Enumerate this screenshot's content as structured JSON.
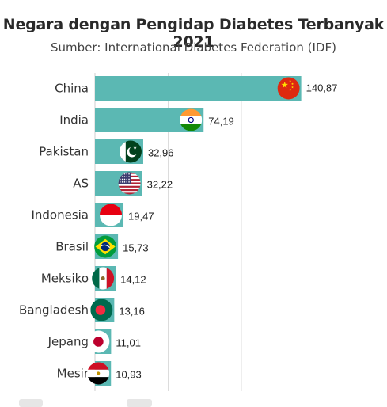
{
  "chart_data": {
    "type": "bar",
    "orientation": "horizontal",
    "title": "Negara dengan Pengidap Diabetes Terbanyak 2021",
    "subtitle": "Sumber: International Diabetes Federation (IDF)",
    "categories": [
      "China",
      "India",
      "Pakistan",
      "AS",
      "Indonesia",
      "Brasil",
      "Meksiko",
      "Bangladesh",
      "Jepang",
      "Mesir"
    ],
    "values": [
      140.87,
      74.19,
      32.96,
      32.22,
      19.47,
      15.73,
      14.12,
      13.16,
      11.01,
      10.93
    ],
    "value_labels": [
      "140,87",
      "74,19",
      "32,96",
      "32,22",
      "19,47",
      "15,73",
      "14,12",
      "13,16",
      "11,01",
      "10,93"
    ],
    "flags": [
      "china-flag",
      "india-flag",
      "pakistan-flag",
      "usa-flag",
      "indonesia-flag",
      "brazil-flag",
      "mexico-flag",
      "bangladesh-flag",
      "japan-flag",
      "egypt-flag"
    ],
    "xlim": [
      0,
      150
    ],
    "gridlines": [
      0,
      50,
      100
    ],
    "grid": true,
    "bar_color": "#5bb8b3"
  }
}
